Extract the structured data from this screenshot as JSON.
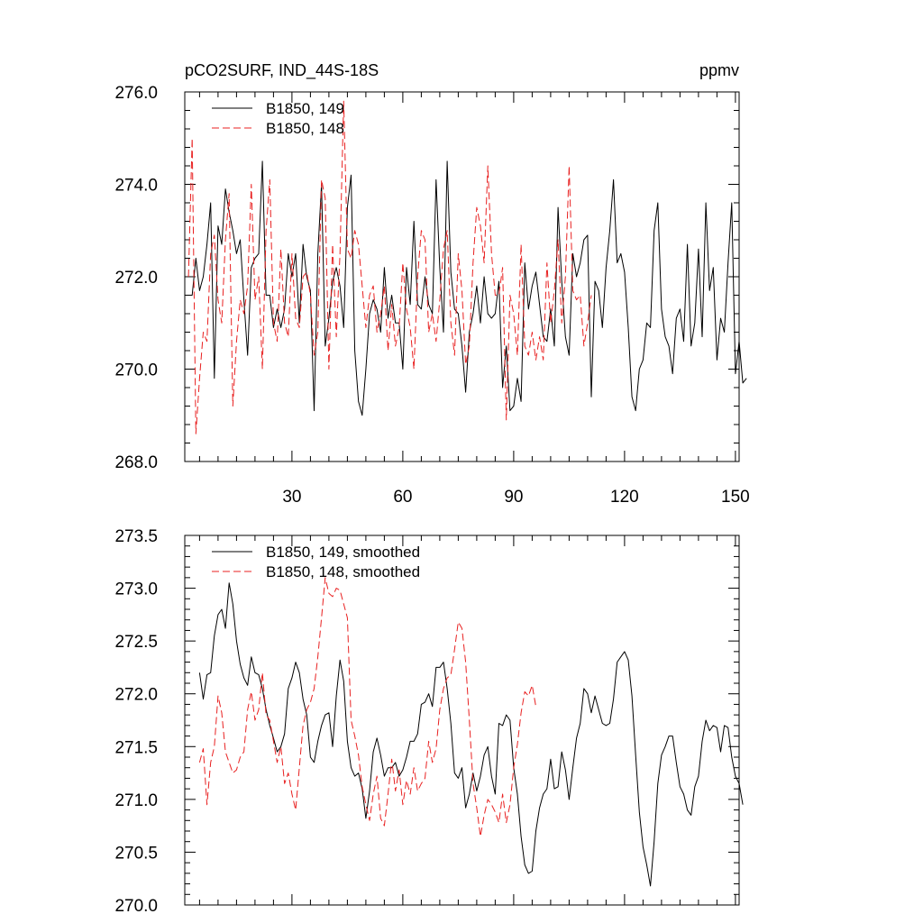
{
  "chart_data": [
    {
      "type": "line",
      "title": "pCO2SURF, IND_44S-18S",
      "units": "ppmv",
      "xlim": [
        1,
        151
      ],
      "ylim": [
        268.0,
        276.0
      ],
      "x_ticks": [
        30,
        60,
        90,
        120,
        150
      ],
      "x_tick_labels": [
        "30",
        "60",
        "90",
        "120",
        "150"
      ],
      "y_ticks": [
        268.0,
        270.0,
        272.0,
        274.0,
        276.0
      ],
      "y_tick_labels": [
        "268.0",
        "270.0",
        "272.0",
        "274.0",
        "276.0"
      ],
      "legend_position": "top-left",
      "series": [
        {
          "name": "B1850, 149",
          "color": "#000000",
          "dash": "solid",
          "x_start": 2,
          "values": [
            271.6,
            271.6,
            272.4,
            271.7,
            272.0,
            272.7,
            273.6,
            269.8,
            273.1,
            272.7,
            273.9,
            273.4,
            273.0,
            272.5,
            272.8,
            271.5,
            270.3,
            272.2,
            272.4,
            272.5,
            274.5,
            271.6,
            271.6,
            270.9,
            271.3,
            270.9,
            271.3,
            272.5,
            272.0,
            272.5,
            271.0,
            272.7,
            272.0,
            271.7,
            269.1,
            272.5,
            274.0,
            270.5,
            271.1,
            271.9,
            272.2,
            271.8,
            270.9,
            273.5,
            274.2,
            270.4,
            269.3,
            269.0,
            270.0,
            271.2,
            271.5,
            271.3,
            270.8,
            272.2,
            271.1,
            271.6,
            271.0,
            271.0,
            270.0,
            272.2,
            271.4,
            273.2,
            271.4,
            271.3,
            272.0,
            271.4,
            271.2,
            274.1,
            272.2,
            270.8,
            274.5,
            272.1,
            271.3,
            271.2,
            270.5,
            269.5,
            270.8,
            271.2,
            271.8,
            271.0,
            272.0,
            271.2,
            271.1,
            271.2,
            271.9,
            269.6,
            270.5,
            269.1,
            269.2,
            269.8,
            269.3,
            272.3,
            271.3,
            271.8,
            272.1,
            271.4,
            270.7,
            270.6,
            271.3,
            270.5,
            273.5,
            271.9,
            270.7,
            270.3,
            272.5,
            272.0,
            272.3,
            272.8,
            272.9,
            269.4,
            271.9,
            271.7,
            270.9,
            272.2,
            273.0,
            274.1,
            272.3,
            272.5,
            272.1,
            270.9,
            269.4,
            269.1,
            270.0,
            270.2,
            271.0,
            270.9,
            273.0,
            273.6,
            271.3,
            270.7,
            270.5,
            269.9,
            271.1,
            271.3,
            270.6,
            272.7,
            270.5,
            271.0,
            272.6,
            270.7,
            273.6,
            271.7,
            272.2,
            270.2,
            271.1,
            270.8,
            272.3,
            273.6,
            269.9,
            270.6,
            269.7,
            269.8
          ]
        },
        {
          "name": "B1850, 148",
          "color": "#e82020",
          "dash": "dashed",
          "x_start": 2,
          "values": [
            272.0,
            275.0,
            268.6,
            269.8,
            270.8,
            270.6,
            272.5,
            272.9,
            271.5,
            271.0,
            272.8,
            273.8,
            269.2,
            270.6,
            271.5,
            271.2,
            271.8,
            274.0,
            271.5,
            272.0,
            270.0,
            273.0,
            274.1,
            271.0,
            270.6,
            272.6,
            271.0,
            270.7,
            272.5,
            271.1,
            270.9,
            272.0,
            272.1,
            271.6,
            270.3,
            270.8,
            274.1,
            273.7,
            270.0,
            272.7,
            270.7,
            272.5,
            275.8,
            272.6,
            272.4,
            273.0,
            272.7,
            271.8,
            270.9,
            271.6,
            271.8,
            270.8,
            271.2,
            271.8,
            270.4,
            271.4,
            270.5,
            270.9,
            272.3,
            271.3,
            270.9,
            270.0,
            272.0,
            273.0,
            272.8,
            270.8,
            271.2,
            270.6,
            271.5,
            272.6,
            273.0,
            271.0,
            270.3,
            272.5,
            271.7,
            270.1,
            270.5,
            272.3,
            273.5,
            273.1,
            272.3,
            274.4,
            272.5,
            271.6,
            271.6,
            272.2,
            268.9,
            271.6,
            271.2,
            270.3,
            272.7,
            270.5,
            270.3,
            270.8,
            270.2,
            270.7,
            270.2,
            272.3,
            271.0,
            271.7,
            272.8,
            271.0,
            272.0,
            274.4,
            271.7,
            271.5,
            271.6,
            270.5,
            271.0,
            271.6
          ]
        }
      ]
    },
    {
      "type": "line",
      "title": "",
      "xlim": [
        1,
        151
      ],
      "ylim": [
        270.0,
        273.5
      ],
      "x_ticks": [
        30,
        60,
        90,
        120,
        150
      ],
      "x_tick_labels": [],
      "y_ticks": [
        270.0,
        270.5,
        271.0,
        271.5,
        272.0,
        272.5,
        273.0,
        273.5
      ],
      "y_tick_labels": [
        "270.0",
        "270.5",
        "271.0",
        "271.5",
        "272.0",
        "272.5",
        "273.0",
        "273.5"
      ],
      "legend_position": "top-left",
      "series": [
        {
          "name": "B1850, 149, smoothed",
          "color": "#000000",
          "dash": "solid",
          "x_start": 5,
          "values": [
            272.2,
            271.95,
            272.18,
            272.2,
            272.55,
            272.75,
            272.8,
            272.62,
            273.05,
            272.85,
            272.5,
            272.28,
            272.15,
            272.08,
            272.35,
            272.2,
            272.18,
            272.05,
            271.85,
            271.7,
            271.58,
            271.45,
            271.5,
            271.62,
            272.05,
            272.15,
            272.3,
            272.2,
            271.95,
            271.8,
            271.4,
            271.35,
            271.55,
            271.7,
            271.8,
            271.82,
            271.5,
            271.98,
            272.32,
            272.12,
            271.55,
            271.3,
            271.22,
            271.25,
            271.1,
            270.82,
            271.08,
            271.45,
            271.58,
            271.42,
            271.22,
            271.3,
            271.3,
            271.35,
            271.22,
            271.28,
            271.4,
            271.55,
            271.55,
            271.62,
            271.9,
            271.92,
            272.0,
            271.88,
            272.25,
            272.25,
            272.3,
            272.05,
            271.72,
            271.25,
            271.2,
            271.3,
            270.92,
            271.05,
            271.25,
            271.08,
            271.22,
            271.42,
            271.5,
            271.22,
            271.05,
            271.72,
            271.7,
            271.8,
            271.75,
            271.3,
            271.05,
            270.65,
            270.38,
            270.3,
            270.32,
            270.7,
            270.92,
            271.05,
            271.1,
            271.38,
            271.1,
            271.12,
            271.45,
            271.28,
            271.0,
            271.3,
            271.58,
            271.72,
            272.05,
            272.0,
            271.82,
            271.98,
            271.85,
            271.72,
            271.7,
            271.72,
            271.95,
            272.3,
            272.35,
            272.4,
            272.32,
            271.98,
            271.42,
            270.88,
            270.55,
            270.38,
            270.18,
            270.6,
            271.15,
            271.42,
            271.5,
            271.6,
            271.6,
            271.35,
            271.12,
            271.05,
            270.9,
            270.85,
            271.12,
            271.22,
            271.55,
            271.75,
            271.65,
            271.7,
            271.68,
            271.45,
            271.7,
            271.68,
            271.4,
            271.22,
            271.15,
            270.95
          ]
        },
        {
          "name": "B1850, 148, smoothed",
          "color": "#e82020",
          "dash": "dashed",
          "x_start": 5,
          "values": [
            271.35,
            271.48,
            270.95,
            271.35,
            271.5,
            271.98,
            271.82,
            271.45,
            271.35,
            271.25,
            271.28,
            271.4,
            271.45,
            271.85,
            272.02,
            271.75,
            271.85,
            272.2,
            271.8,
            271.75,
            271.55,
            271.35,
            271.5,
            271.15,
            271.25,
            271.05,
            270.9,
            271.3,
            271.7,
            271.85,
            271.92,
            272.05,
            272.35,
            272.72,
            273.1,
            272.95,
            272.92,
            273.0,
            272.98,
            272.85,
            272.72,
            271.75,
            271.6,
            271.42,
            271.12,
            270.95,
            270.8,
            271.05,
            271.22,
            270.82,
            270.75,
            271.05,
            271.38,
            271.08,
            271.28,
            270.95,
            271.18,
            271.05,
            271.3,
            271.08,
            271.15,
            271.2,
            271.55,
            271.35,
            271.48,
            271.85,
            272.05,
            272.15,
            272.18,
            272.42,
            272.68,
            272.62,
            272.3,
            271.75,
            271.15,
            270.92,
            270.65,
            270.85,
            271.0,
            270.95,
            270.88,
            270.78,
            271.05,
            270.78,
            270.95,
            271.3,
            271.52,
            271.82,
            272.02,
            271.98,
            272.08,
            271.88
          ]
        }
      ]
    }
  ]
}
